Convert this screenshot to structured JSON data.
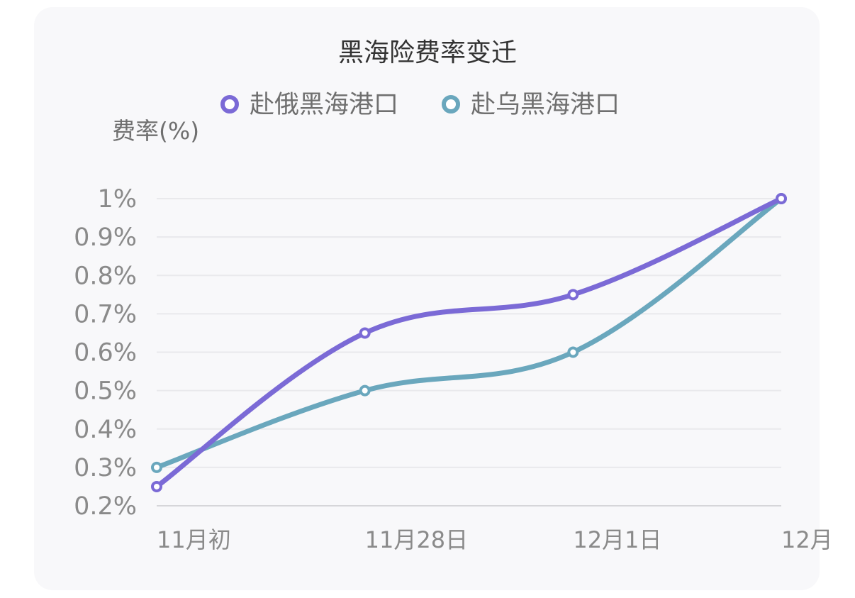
{
  "chart_data": {
    "type": "line",
    "title": "黑海险费率变迁",
    "ylabel": "费率(%)",
    "xlabel": "",
    "categories": [
      "11月初",
      "11月28日",
      "12月1日",
      "12月"
    ],
    "series": [
      {
        "name": "赴俄黑海港口",
        "color": "#7b6ad6",
        "values": [
          0.25,
          0.65,
          0.75,
          1.0
        ]
      },
      {
        "name": "赴乌黑海港口",
        "color": "#6aa7bd",
        "values": [
          0.3,
          0.5,
          0.6,
          1.0
        ]
      }
    ],
    "yticks": [
      "1%",
      "0.9%",
      "0.8%",
      "0.7%",
      "0.6%",
      "0.5%",
      "0.4%",
      "0.3%",
      "0.2%"
    ],
    "ylim": [
      0.2,
      1.0
    ],
    "grid": true,
    "legend": "top-center",
    "smooth": true
  }
}
